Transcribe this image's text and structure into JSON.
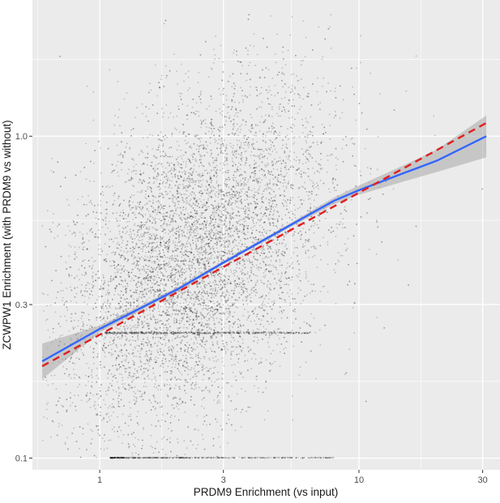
{
  "chart_data": {
    "type": "scatter",
    "title": "",
    "xlabel": "PRDM9 Enrichment (vs input)",
    "ylabel": "ZCWPW1 Enrichment (with PRDM9 vs without)",
    "x_scale": "log10",
    "y_scale": "log10",
    "xlim": [
      0.55,
      35
    ],
    "ylim": [
      0.092,
      2.65
    ],
    "x_ticks": [
      1,
      3,
      10,
      30
    ],
    "x_tick_labels": [
      "1",
      "3",
      "10",
      "30"
    ],
    "y_ticks": [
      0.1,
      0.3,
      1.0
    ],
    "y_tick_labels": [
      "0.1",
      "0.3",
      "1.0"
    ],
    "grid": true,
    "legend": "none",
    "background": "#ebebeb",
    "grid_color": "#ffffff",
    "point_color": "#000000",
    "point_opacity": 0.2,
    "point_count_approx": 9000,
    "point_cloud": {
      "center_x": 2.3,
      "center_y": 0.42,
      "x_range": [
        0.6,
        32
      ],
      "y_range": [
        0.1,
        2.4
      ],
      "floor_row_y": 0.1,
      "floor_row_x_range": [
        1.1,
        8
      ],
      "dense_row_y": 0.245,
      "dense_row_x_range": [
        1.05,
        6.5
      ]
    },
    "series": [
      {
        "kind": "loess",
        "color": "#3366ff",
        "x": [
          0.6,
          1,
          2,
          3,
          5,
          8,
          10,
          15,
          20,
          31
        ],
        "y": [
          0.2,
          0.252,
          0.335,
          0.405,
          0.51,
          0.63,
          0.68,
          0.77,
          0.84,
          1.0
        ],
        "ci_lower": [
          0.176,
          0.246,
          0.33,
          0.4,
          0.503,
          0.615,
          0.658,
          0.725,
          0.775,
          0.86
        ],
        "ci_upper": [
          0.227,
          0.258,
          0.34,
          0.41,
          0.517,
          0.645,
          0.703,
          0.815,
          0.91,
          1.16
        ],
        "ci_color": "#999999"
      },
      {
        "kind": "linear",
        "color": "#e02020",
        "dashed": true,
        "x": [
          0.6,
          31
        ],
        "y": [
          0.193,
          1.1
        ]
      }
    ]
  }
}
